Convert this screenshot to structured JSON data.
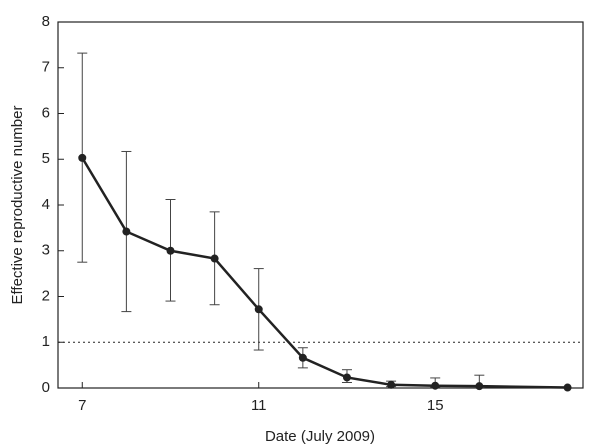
{
  "chart_data": {
    "type": "line",
    "x_label": "Date (July 2009)",
    "y_label": "Effective reproductive number",
    "x": [
      7,
      8,
      9,
      10,
      11,
      12,
      13,
      14,
      15,
      16,
      18
    ],
    "series": [
      {
        "name": "Effective reproductive number",
        "color": "#222222",
        "values": [
          5.03,
          3.42,
          3.0,
          2.83,
          1.72,
          0.66,
          0.23,
          0.07,
          0.05,
          0.04,
          0.01
        ],
        "lower": [
          2.75,
          1.67,
          1.9,
          1.82,
          0.83,
          0.44,
          0.12,
          0.03,
          0.02,
          0.01,
          null
        ],
        "upper": [
          7.32,
          5.17,
          4.12,
          3.85,
          2.61,
          0.88,
          0.4,
          0.15,
          0.22,
          0.28,
          null
        ]
      }
    ],
    "reference_line": 1,
    "xlim": [
      6.45,
      18.35
    ],
    "xticks": [
      7,
      11,
      15
    ],
    "ylim": [
      0,
      8
    ],
    "yticks": [
      0,
      1,
      2,
      3,
      4,
      5,
      6,
      7,
      8
    ]
  }
}
